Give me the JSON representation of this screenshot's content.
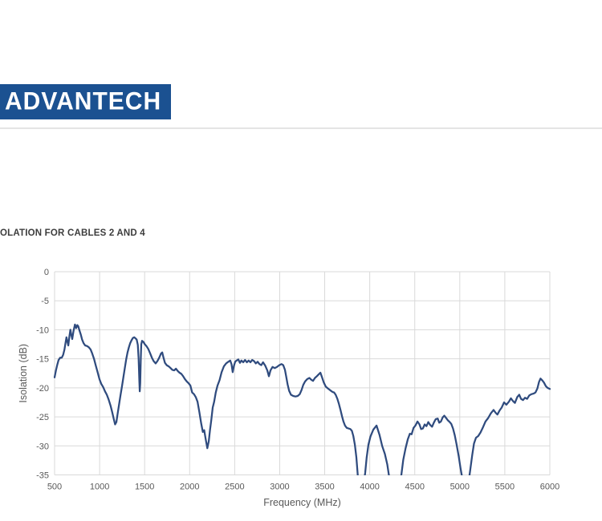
{
  "page": {
    "background": "#ffffff"
  },
  "logo": {
    "text": "ADVANTECH",
    "bg_color": "#1b5191",
    "text_color": "#ffffff"
  },
  "header_rule_color": "#e4e4e4",
  "heading": {
    "text": "OLATION FOR CABLES 2 AND 4"
  },
  "chart_data": {
    "type": "line",
    "title": "",
    "xlabel": "Frequency (MHz)",
    "ylabel": "Isolation (dB)",
    "xlim": [
      500,
      6000
    ],
    "ylim": [
      -35,
      0
    ],
    "x_ticks": [
      500,
      1000,
      1500,
      2000,
      2500,
      3000,
      3500,
      4000,
      4500,
      5000,
      5500,
      6000
    ],
    "y_ticks": [
      0,
      -5,
      -10,
      -15,
      -20,
      -25,
      -30,
      -35
    ],
    "grid": true,
    "legend": "none",
    "line_color": "#2f4b7e",
    "gridline_color": "#d9d9d9",
    "tick_color": "#595959",
    "series": [
      {
        "name": "isolation-cables-2-and-4",
        "points": [
          [
            500,
            -18.2
          ],
          [
            515,
            -17.0
          ],
          [
            530,
            -16.0
          ],
          [
            545,
            -15.2
          ],
          [
            562,
            -14.8
          ],
          [
            580,
            -14.8
          ],
          [
            595,
            -14.3
          ],
          [
            610,
            -13.4
          ],
          [
            622,
            -12.2
          ],
          [
            632,
            -11.3
          ],
          [
            642,
            -12.0
          ],
          [
            652,
            -12.7
          ],
          [
            663,
            -11.3
          ],
          [
            676,
            -10.0
          ],
          [
            686,
            -10.9
          ],
          [
            696,
            -11.6
          ],
          [
            710,
            -10.2
          ],
          [
            726,
            -9.1
          ],
          [
            740,
            -9.7
          ],
          [
            752,
            -9.2
          ],
          [
            763,
            -9.4
          ],
          [
            778,
            -10.2
          ],
          [
            792,
            -10.9
          ],
          [
            806,
            -11.7
          ],
          [
            822,
            -12.3
          ],
          [
            840,
            -12.7
          ],
          [
            860,
            -12.8
          ],
          [
            880,
            -13.0
          ],
          [
            900,
            -13.4
          ],
          [
            918,
            -14.1
          ],
          [
            938,
            -15.0
          ],
          [
            958,
            -16.2
          ],
          [
            978,
            -17.3
          ],
          [
            998,
            -18.5
          ],
          [
            1018,
            -19.3
          ],
          [
            1040,
            -19.9
          ],
          [
            1060,
            -20.6
          ],
          [
            1080,
            -21.2
          ],
          [
            1100,
            -22.0
          ],
          [
            1122,
            -23.1
          ],
          [
            1140,
            -24.2
          ],
          [
            1158,
            -25.4
          ],
          [
            1172,
            -26.3
          ],
          [
            1186,
            -25.9
          ],
          [
            1200,
            -24.5
          ],
          [
            1216,
            -22.9
          ],
          [
            1232,
            -21.3
          ],
          [
            1248,
            -19.8
          ],
          [
            1264,
            -18.2
          ],
          [
            1280,
            -16.6
          ],
          [
            1295,
            -15.1
          ],
          [
            1310,
            -13.9
          ],
          [
            1325,
            -13.0
          ],
          [
            1340,
            -12.3
          ],
          [
            1355,
            -11.8
          ],
          [
            1370,
            -11.4
          ],
          [
            1385,
            -11.3
          ],
          [
            1400,
            -11.5
          ],
          [
            1412,
            -11.7
          ],
          [
            1424,
            -12.6
          ],
          [
            1433,
            -15.0
          ],
          [
            1441,
            -18.8
          ],
          [
            1446,
            -20.6
          ],
          [
            1451,
            -19.2
          ],
          [
            1457,
            -15.0
          ],
          [
            1463,
            -12.5
          ],
          [
            1472,
            -11.9
          ],
          [
            1487,
            -12.1
          ],
          [
            1502,
            -12.5
          ],
          [
            1520,
            -12.8
          ],
          [
            1540,
            -13.3
          ],
          [
            1560,
            -14.0
          ],
          [
            1580,
            -14.8
          ],
          [
            1600,
            -15.4
          ],
          [
            1622,
            -15.8
          ],
          [
            1642,
            -15.4
          ],
          [
            1662,
            -14.8
          ],
          [
            1682,
            -14.1
          ],
          [
            1695,
            -13.9
          ],
          [
            1710,
            -14.8
          ],
          [
            1726,
            -15.7
          ],
          [
            1745,
            -16.1
          ],
          [
            1768,
            -16.3
          ],
          [
            1788,
            -16.6
          ],
          [
            1808,
            -16.9
          ],
          [
            1828,
            -17.0
          ],
          [
            1848,
            -16.7
          ],
          [
            1868,
            -17.1
          ],
          [
            1888,
            -17.4
          ],
          [
            1908,
            -17.6
          ],
          [
            1928,
            -18.0
          ],
          [
            1948,
            -18.5
          ],
          [
            1968,
            -18.9
          ],
          [
            1988,
            -19.2
          ],
          [
            2008,
            -19.6
          ],
          [
            2028,
            -20.8
          ],
          [
            2048,
            -21.1
          ],
          [
            2068,
            -21.6
          ],
          [
            2088,
            -22.4
          ],
          [
            2108,
            -24.2
          ],
          [
            2128,
            -26.1
          ],
          [
            2146,
            -27.6
          ],
          [
            2162,
            -27.3
          ],
          [
            2178,
            -28.8
          ],
          [
            2196,
            -30.4
          ],
          [
            2212,
            -29.2
          ],
          [
            2226,
            -27.3
          ],
          [
            2240,
            -25.6
          ],
          [
            2256,
            -23.4
          ],
          [
            2272,
            -22.4
          ],
          [
            2290,
            -20.8
          ],
          [
            2310,
            -19.6
          ],
          [
            2332,
            -18.7
          ],
          [
            2355,
            -17.3
          ],
          [
            2380,
            -16.3
          ],
          [
            2405,
            -15.8
          ],
          [
            2430,
            -15.5
          ],
          [
            2450,
            -15.3
          ],
          [
            2465,
            -15.9
          ],
          [
            2478,
            -17.3
          ],
          [
            2492,
            -16.2
          ],
          [
            2506,
            -15.5
          ],
          [
            2522,
            -15.3
          ],
          [
            2540,
            -15.1
          ],
          [
            2558,
            -15.7
          ],
          [
            2575,
            -15.3
          ],
          [
            2595,
            -15.6
          ],
          [
            2615,
            -15.2
          ],
          [
            2635,
            -15.6
          ],
          [
            2655,
            -15.3
          ],
          [
            2675,
            -15.6
          ],
          [
            2695,
            -15.2
          ],
          [
            2715,
            -15.4
          ],
          [
            2735,
            -15.8
          ],
          [
            2755,
            -15.5
          ],
          [
            2775,
            -15.9
          ],
          [
            2795,
            -16.1
          ],
          [
            2815,
            -15.6
          ],
          [
            2840,
            -16.2
          ],
          [
            2862,
            -17.0
          ],
          [
            2880,
            -18.0
          ],
          [
            2898,
            -17.0
          ],
          [
            2920,
            -16.4
          ],
          [
            2945,
            -16.6
          ],
          [
            2970,
            -16.4
          ],
          [
            2995,
            -16.1
          ],
          [
            3020,
            -15.9
          ],
          [
            3040,
            -16.1
          ],
          [
            3058,
            -16.9
          ],
          [
            3072,
            -18.0
          ],
          [
            3088,
            -19.4
          ],
          [
            3105,
            -20.5
          ],
          [
            3125,
            -21.2
          ],
          [
            3150,
            -21.4
          ],
          [
            3175,
            -21.5
          ],
          [
            3200,
            -21.4
          ],
          [
            3222,
            -21.1
          ],
          [
            3242,
            -20.4
          ],
          [
            3262,
            -19.5
          ],
          [
            3282,
            -18.9
          ],
          [
            3305,
            -18.5
          ],
          [
            3330,
            -18.3
          ],
          [
            3350,
            -18.6
          ],
          [
            3370,
            -18.8
          ],
          [
            3392,
            -18.3
          ],
          [
            3412,
            -18.0
          ],
          [
            3432,
            -17.7
          ],
          [
            3452,
            -17.4
          ],
          [
            3470,
            -18.2
          ],
          [
            3490,
            -19.1
          ],
          [
            3512,
            -19.8
          ],
          [
            3535,
            -20.1
          ],
          [
            3560,
            -20.4
          ],
          [
            3585,
            -20.7
          ],
          [
            3605,
            -20.8
          ],
          [
            3622,
            -21.2
          ],
          [
            3640,
            -21.9
          ],
          [
            3658,
            -22.8
          ],
          [
            3675,
            -23.8
          ],
          [
            3692,
            -24.9
          ],
          [
            3708,
            -25.8
          ],
          [
            3725,
            -26.5
          ],
          [
            3745,
            -26.9
          ],
          [
            3765,
            -27.0
          ],
          [
            3785,
            -27.1
          ],
          [
            3802,
            -27.4
          ],
          [
            3818,
            -28.3
          ],
          [
            3835,
            -29.8
          ],
          [
            3852,
            -32.0
          ],
          [
            3868,
            -35.2
          ],
          [
            3880,
            -36.8
          ],
          [
            3932,
            -36.8
          ],
          [
            3950,
            -34.6
          ],
          [
            3966,
            -32.0
          ],
          [
            3985,
            -29.8
          ],
          [
            4008,
            -28.4
          ],
          [
            4040,
            -27.2
          ],
          [
            4075,
            -26.5
          ],
          [
            4108,
            -28.1
          ],
          [
            4138,
            -30.0
          ],
          [
            4168,
            -31.4
          ],
          [
            4195,
            -33.2
          ],
          [
            4215,
            -35.3
          ],
          [
            4228,
            -36.8
          ],
          [
            4330,
            -36.8
          ],
          [
            4352,
            -34.9
          ],
          [
            4372,
            -32.4
          ],
          [
            4398,
            -30.4
          ],
          [
            4422,
            -28.9
          ],
          [
            4445,
            -27.9
          ],
          [
            4465,
            -28.0
          ],
          [
            4486,
            -26.9
          ],
          [
            4508,
            -26.5
          ],
          [
            4530,
            -25.8
          ],
          [
            4552,
            -26.3
          ],
          [
            4570,
            -27.1
          ],
          [
            4590,
            -27.0
          ],
          [
            4610,
            -26.3
          ],
          [
            4630,
            -26.6
          ],
          [
            4650,
            -25.9
          ],
          [
            4672,
            -26.4
          ],
          [
            4692,
            -26.7
          ],
          [
            4712,
            -26.0
          ],
          [
            4732,
            -25.4
          ],
          [
            4755,
            -25.3
          ],
          [
            4772,
            -26.0
          ],
          [
            4790,
            -25.8
          ],
          [
            4810,
            -25.1
          ],
          [
            4828,
            -24.8
          ],
          [
            4848,
            -25.2
          ],
          [
            4868,
            -25.6
          ],
          [
            4888,
            -25.9
          ],
          [
            4905,
            -26.2
          ],
          [
            4925,
            -27.0
          ],
          [
            4945,
            -28.2
          ],
          [
            4965,
            -29.8
          ],
          [
            4988,
            -31.8
          ],
          [
            5008,
            -33.8
          ],
          [
            5025,
            -35.3
          ],
          [
            5040,
            -36.8
          ],
          [
            5092,
            -36.8
          ],
          [
            5112,
            -34.6
          ],
          [
            5138,
            -31.6
          ],
          [
            5158,
            -29.6
          ],
          [
            5180,
            -28.6
          ],
          [
            5205,
            -28.3
          ],
          [
            5230,
            -27.7
          ],
          [
            5255,
            -26.9
          ],
          [
            5285,
            -25.8
          ],
          [
            5315,
            -25.2
          ],
          [
            5345,
            -24.4
          ],
          [
            5375,
            -23.8
          ],
          [
            5398,
            -24.3
          ],
          [
            5418,
            -24.6
          ],
          [
            5442,
            -23.9
          ],
          [
            5465,
            -23.4
          ],
          [
            5492,
            -22.5
          ],
          [
            5518,
            -22.9
          ],
          [
            5545,
            -22.4
          ],
          [
            5568,
            -21.8
          ],
          [
            5592,
            -22.3
          ],
          [
            5612,
            -22.6
          ],
          [
            5638,
            -21.6
          ],
          [
            5660,
            -21.2
          ],
          [
            5680,
            -21.9
          ],
          [
            5702,
            -22.1
          ],
          [
            5725,
            -21.7
          ],
          [
            5748,
            -21.9
          ],
          [
            5772,
            -21.3
          ],
          [
            5795,
            -21.1
          ],
          [
            5818,
            -21.0
          ],
          [
            5840,
            -20.8
          ],
          [
            5862,
            -20.1
          ],
          [
            5880,
            -19.0
          ],
          [
            5897,
            -18.4
          ],
          [
            5915,
            -18.7
          ],
          [
            5935,
            -19.1
          ],
          [
            5955,
            -19.7
          ],
          [
            5975,
            -20.0
          ],
          [
            6000,
            -20.2
          ]
        ]
      }
    ]
  }
}
